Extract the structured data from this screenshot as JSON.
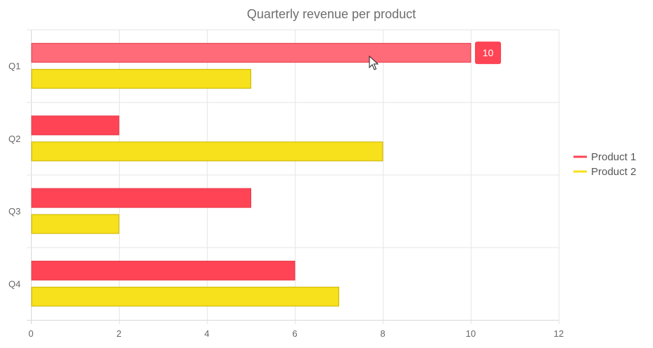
{
  "chart_data": {
    "type": "bar",
    "orientation": "horizontal",
    "title": "Quarterly revenue per product",
    "xlabel": "",
    "ylabel": "",
    "categories": [
      "Q1",
      "Q2",
      "Q3",
      "Q4"
    ],
    "series": [
      {
        "name": "Product 1",
        "values": [
          10,
          2,
          5,
          6
        ],
        "color": "#ff4455",
        "border": "#e63a4a"
      },
      {
        "name": "Product 2",
        "values": [
          5,
          8,
          2,
          7
        ],
        "color": "#f7e01c",
        "border": "#c9b400"
      }
    ],
    "xlim": [
      0,
      12
    ],
    "x_ticks": [
      "0",
      "2",
      "4",
      "6",
      "8",
      "10",
      "12"
    ],
    "grid": true,
    "legend_position": "right",
    "hover": {
      "series": 0,
      "category": 0,
      "value_label": "10",
      "highlight_color": "#ff6b78"
    }
  }
}
